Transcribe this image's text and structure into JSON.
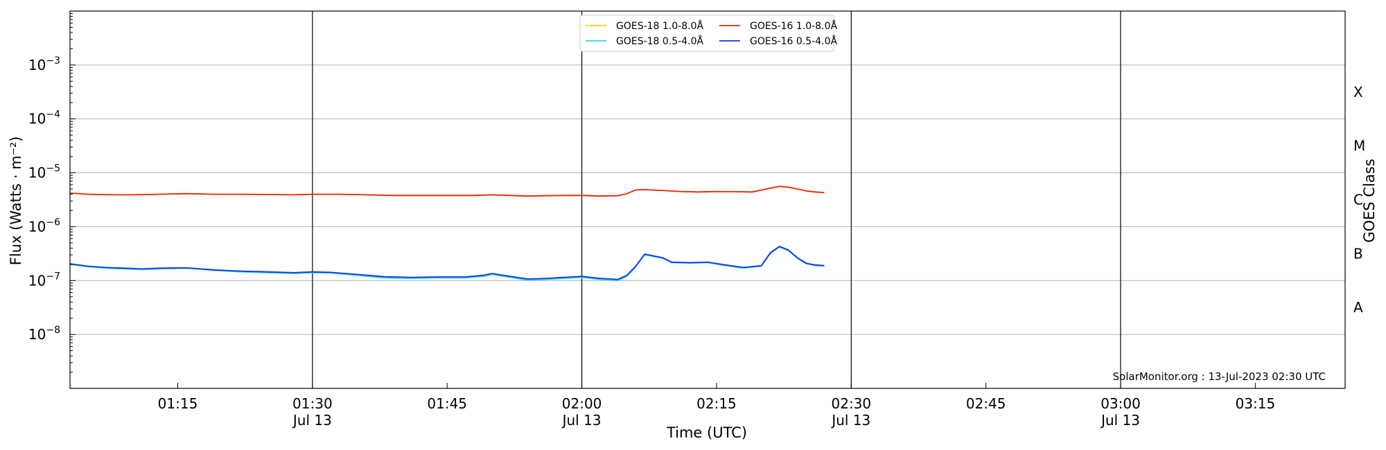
{
  "chart_data": {
    "type": "line",
    "xlabel": "Time (UTC)",
    "ylabel": "Flux (Watts · m⁻²)",
    "ylabel_right": "GOES Class",
    "y_scale": "log",
    "ylim": [
      1e-09,
      0.01
    ],
    "xlim": [
      "2023-07-13 01:03",
      "2023-07-13 03:25"
    ],
    "grid": "horizontal",
    "legend_position": "top-center",
    "x_ticks": [
      {
        "time": "01:15",
        "line1": "01:15",
        "line2": ""
      },
      {
        "time": "01:30",
        "line1": "01:30",
        "line2": "Jul 13"
      },
      {
        "time": "01:45",
        "line1": "01:45",
        "line2": ""
      },
      {
        "time": "02:00",
        "line1": "02:00",
        "line2": "Jul 13"
      },
      {
        "time": "02:15",
        "line1": "02:15",
        "line2": ""
      },
      {
        "time": "02:30",
        "line1": "02:30",
        "line2": "Jul 13"
      },
      {
        "time": "02:45",
        "line1": "02:45",
        "line2": ""
      },
      {
        "time": "03:00",
        "line1": "03:00",
        "line2": "Jul 13"
      },
      {
        "time": "03:15",
        "line1": "03:15",
        "line2": ""
      }
    ],
    "vertical_lines": [
      "01:30",
      "02:00",
      "02:30",
      "03:00"
    ],
    "y_ticks": [
      {
        "value": 1e-08,
        "base": "10",
        "exp": "−8"
      },
      {
        "value": 1e-07,
        "base": "10",
        "exp": "−7"
      },
      {
        "value": 1e-06,
        "base": "10",
        "exp": "−6"
      },
      {
        "value": 1e-05,
        "base": "10",
        "exp": "−5"
      },
      {
        "value": 0.0001,
        "base": "10",
        "exp": "−4"
      },
      {
        "value": 0.001,
        "base": "10",
        "exp": "−3"
      }
    ],
    "goes_classes": [
      {
        "label": "A",
        "value": 3.16e-08
      },
      {
        "label": "B",
        "value": 3.16e-07
      },
      {
        "label": "C",
        "value": 3.16e-06
      },
      {
        "label": "M",
        "value": 3.16e-05
      },
      {
        "label": "X",
        "value": 0.000316
      }
    ],
    "series": [
      {
        "name": "GOES-18 1.0-8.0Å",
        "color": "#ffd000",
        "x": [
          "01:03",
          "01:05",
          "01:08",
          "01:10",
          "01:13",
          "01:16",
          "01:19",
          "01:22",
          "01:25",
          "01:28",
          "01:30",
          "01:33",
          "01:36",
          "01:39",
          "01:42",
          "01:45",
          "01:48",
          "01:50",
          "01:52",
          "01:54",
          "01:56",
          "01:58",
          "02:00",
          "02:02",
          "02:04",
          "02:05",
          "02:06",
          "02:07",
          "02:09",
          "02:11",
          "02:13",
          "02:15",
          "02:17",
          "02:19",
          "02:21",
          "02:22",
          "02:23",
          "02:24",
          "02:25",
          "02:26",
          "02:27"
        ],
        "y": [
          4.2e-06,
          4e-06,
          3.9e-06,
          3.9e-06,
          4e-06,
          4.1e-06,
          4e-06,
          4e-06,
          3.95e-06,
          3.9e-06,
          4e-06,
          4e-06,
          3.9e-06,
          3.8e-06,
          3.8e-06,
          3.8e-06,
          3.8e-06,
          3.9e-06,
          3.8e-06,
          3.7e-06,
          3.75e-06,
          3.8e-06,
          3.8e-06,
          3.7e-06,
          3.75e-06,
          4.1e-06,
          4.8e-06,
          4.85e-06,
          4.7e-06,
          4.5e-06,
          4.4e-06,
          4.5e-06,
          4.45e-06,
          4.4e-06,
          5.2e-06,
          5.6e-06,
          5.4e-06,
          5e-06,
          4.6e-06,
          4.4e-06,
          4.3e-06
        ]
      },
      {
        "name": "GOES-16 1.0-8.0Å",
        "color": "#e8250d",
        "x": [
          "01:03",
          "01:05",
          "01:08",
          "01:10",
          "01:13",
          "01:16",
          "01:19",
          "01:22",
          "01:25",
          "01:28",
          "01:30",
          "01:33",
          "01:36",
          "01:39",
          "01:42",
          "01:45",
          "01:48",
          "01:50",
          "01:52",
          "01:54",
          "01:56",
          "01:58",
          "02:00",
          "02:02",
          "02:04",
          "02:05",
          "02:06",
          "02:07",
          "02:09",
          "02:11",
          "02:13",
          "02:15",
          "02:17",
          "02:19",
          "02:21",
          "02:22",
          "02:23",
          "02:24",
          "02:25",
          "02:26",
          "02:27"
        ],
        "y": [
          4.2e-06,
          4e-06,
          3.9e-06,
          3.9e-06,
          4e-06,
          4.1e-06,
          4e-06,
          4e-06,
          3.95e-06,
          3.9e-06,
          4e-06,
          4e-06,
          3.9e-06,
          3.8e-06,
          3.8e-06,
          3.8e-06,
          3.8e-06,
          3.9e-06,
          3.8e-06,
          3.7e-06,
          3.75e-06,
          3.8e-06,
          3.8e-06,
          3.7e-06,
          3.75e-06,
          4.1e-06,
          4.8e-06,
          4.85e-06,
          4.7e-06,
          4.5e-06,
          4.4e-06,
          4.5e-06,
          4.45e-06,
          4.4e-06,
          5.2e-06,
          5.6e-06,
          5.4e-06,
          5e-06,
          4.6e-06,
          4.4e-06,
          4.3e-06
        ]
      },
      {
        "name": "GOES-18 0.5-4.0Å",
        "color": "#2ad6ee",
        "x": [
          "01:03",
          "01:05",
          "01:07",
          "01:09",
          "01:11",
          "01:13",
          "01:16",
          "01:19",
          "01:22",
          "01:25",
          "01:28",
          "01:30",
          "01:32",
          "01:35",
          "01:38",
          "01:41",
          "01:44",
          "01:47",
          "01:49",
          "01:50",
          "01:52",
          "01:54",
          "01:56",
          "01:58",
          "02:00",
          "02:02",
          "02:04",
          "02:05",
          "02:06",
          "02:07",
          "02:09",
          "02:10",
          "02:12",
          "02:14",
          "02:16",
          "02:18",
          "02:20",
          "02:21",
          "02:22",
          "02:23",
          "02:24",
          "02:25",
          "02:26",
          "02:27"
        ],
        "y": [
          2e-07,
          1.8e-07,
          1.7e-07,
          1.65e-07,
          1.6e-07,
          1.65e-07,
          1.7e-07,
          1.55e-07,
          1.45e-07,
          1.4e-07,
          1.35e-07,
          1.4e-07,
          1.38e-07,
          1.25e-07,
          1.12e-07,
          1.1e-07,
          1.12e-07,
          1.12e-07,
          1.2e-07,
          1.3e-07,
          1.15e-07,
          1.02e-07,
          1.05e-07,
          1.1e-07,
          1.15e-07,
          1.05e-07,
          1e-07,
          1.2e-07,
          1.8e-07,
          3e-07,
          2.6e-07,
          2.15e-07,
          2.1e-07,
          2.15e-07,
          1.9e-07,
          1.7e-07,
          1.85e-07,
          3.2e-07,
          4.2e-07,
          3.6e-07,
          2.6e-07,
          2.05e-07,
          1.9e-07,
          1.85e-07
        ]
      },
      {
        "name": "GOES-16 0.5-4.0Å",
        "color": "#1432e6",
        "x": [
          "01:03",
          "01:05",
          "01:07",
          "01:09",
          "01:11",
          "01:13",
          "01:16",
          "01:19",
          "01:22",
          "01:25",
          "01:28",
          "01:30",
          "01:32",
          "01:35",
          "01:38",
          "01:41",
          "01:44",
          "01:47",
          "01:49",
          "01:50",
          "01:52",
          "01:54",
          "01:56",
          "01:58",
          "02:00",
          "02:02",
          "02:04",
          "02:05",
          "02:06",
          "02:07",
          "02:09",
          "02:10",
          "02:12",
          "02:14",
          "02:16",
          "02:18",
          "02:20",
          "02:21",
          "02:22",
          "02:23",
          "02:24",
          "02:25",
          "02:26",
          "02:27"
        ],
        "y": [
          2.05e-07,
          1.85e-07,
          1.75e-07,
          1.7e-07,
          1.65e-07,
          1.7e-07,
          1.72e-07,
          1.58e-07,
          1.5e-07,
          1.45e-07,
          1.4e-07,
          1.45e-07,
          1.42e-07,
          1.3e-07,
          1.18e-07,
          1.15e-07,
          1.17e-07,
          1.17e-07,
          1.25e-07,
          1.35e-07,
          1.2e-07,
          1.07e-07,
          1.1e-07,
          1.15e-07,
          1.2e-07,
          1.1e-07,
          1.05e-07,
          1.25e-07,
          1.85e-07,
          3.1e-07,
          2.65e-07,
          2.2e-07,
          2.15e-07,
          2.2e-07,
          1.95e-07,
          1.75e-07,
          1.9e-07,
          3.3e-07,
          4.3e-07,
          3.7e-07,
          2.65e-07,
          2.1e-07,
          1.95e-07,
          1.9e-07
        ]
      }
    ],
    "legend_order": [
      0,
      2,
      1,
      3
    ],
    "credit": "SolarMonitor.org : 13-Jul-2023 02:30 UTC"
  }
}
